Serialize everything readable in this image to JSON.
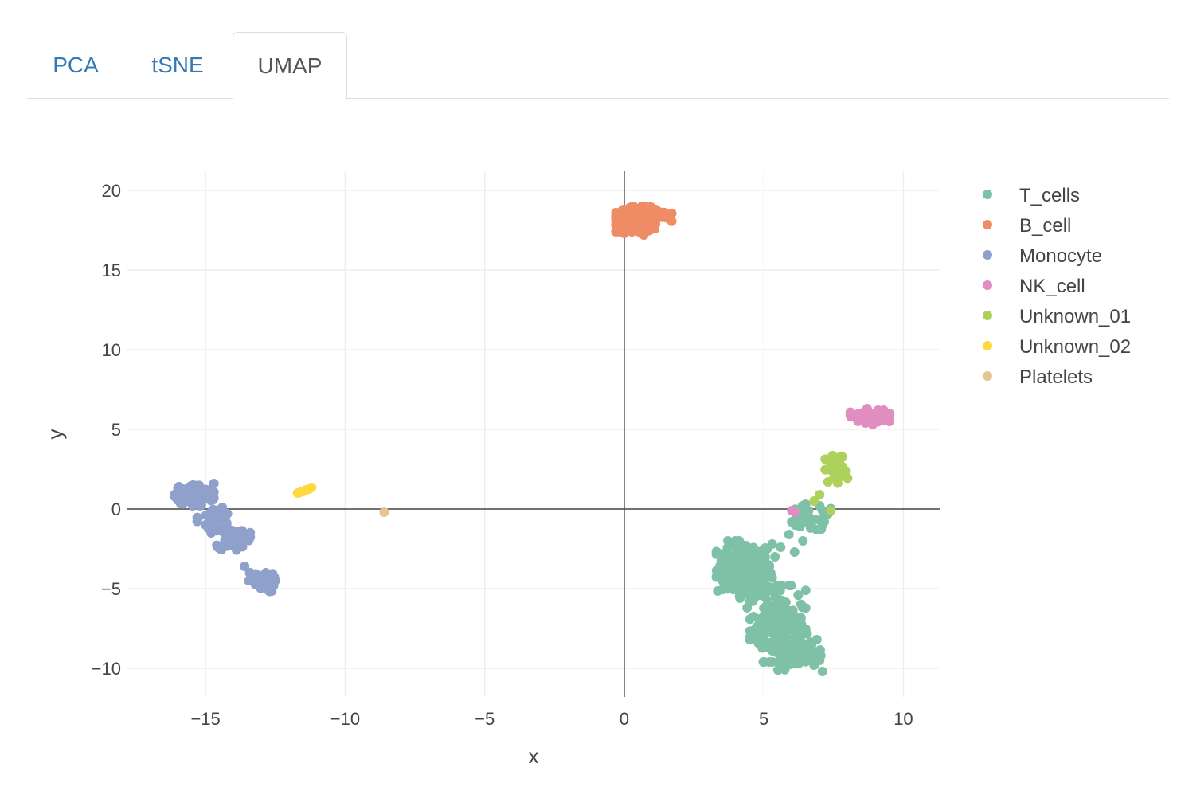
{
  "tabs": [
    {
      "label": "PCA",
      "active": false
    },
    {
      "label": "tSNE",
      "active": false
    },
    {
      "label": "UMAP",
      "active": true
    }
  ],
  "chart_data": {
    "type": "scatter",
    "xlabel": "x",
    "ylabel": "y",
    "xlim": [
      -17.8,
      11.3
    ],
    "ylim": [
      -11.8,
      21.2
    ],
    "xticks": [
      -15,
      -10,
      -5,
      0,
      5,
      10
    ],
    "yticks": [
      -10,
      -5,
      0,
      5,
      10,
      15,
      20
    ],
    "xtick_labels": [
      "−15",
      "−10",
      "−5",
      "0",
      "5",
      "10"
    ],
    "ytick_labels": [
      "−10",
      "−5",
      "0",
      "5",
      "10",
      "15",
      "20"
    ],
    "grid": true,
    "zero_lines": true,
    "legend_position": "right",
    "series": [
      {
        "name": "T_cells",
        "color": "#7fc1a7",
        "clusters": [
          {
            "center": [
              4.3,
              -3.8
            ],
            "spread": [
              0.5,
              0.9
            ],
            "n": 140
          },
          {
            "center": [
              5.5,
              -7.2
            ],
            "spread": [
              0.5,
              1.2
            ],
            "n": 170
          },
          {
            "center": [
              6.3,
              -9.0
            ],
            "spread": [
              0.4,
              0.6
            ],
            "n": 50
          },
          {
            "center": [
              6.6,
              -0.6
            ],
            "spread": [
              0.5,
              0.4
            ],
            "n": 30
          }
        ],
        "points": [
          [
            5.0,
            -4.2
          ],
          [
            5.2,
            -3.6
          ],
          [
            5.4,
            -3.0
          ],
          [
            5.6,
            -2.4
          ],
          [
            5.9,
            -1.6
          ],
          [
            6.0,
            -0.8
          ],
          [
            6.2,
            -0.2
          ],
          [
            6.5,
            0.3
          ],
          [
            6.9,
            -1.3
          ],
          [
            6.4,
            -2.0
          ],
          [
            6.1,
            -2.7
          ],
          [
            5.3,
            -2.2
          ],
          [
            5.0,
            -5.0
          ],
          [
            4.6,
            -5.6
          ],
          [
            4.4,
            -6.2
          ],
          [
            4.7,
            -4.5
          ],
          [
            6.8,
            -9.8
          ],
          [
            6.5,
            -8.7
          ],
          [
            6.9,
            -8.2
          ],
          [
            7.3,
            -0.3
          ],
          [
            7.1,
            -1.0
          ],
          [
            7.0,
            0.2
          ],
          [
            6.7,
            -0.9
          ],
          [
            6.3,
            -1.1
          ],
          [
            3.6,
            -3.2
          ],
          [
            3.8,
            -2.9
          ],
          [
            4.0,
            -4.9
          ],
          [
            7.0,
            -9.5
          ]
        ]
      },
      {
        "name": "B_cell",
        "color": "#ef8c65",
        "clusters": [
          {
            "center": [
              0.5,
              18.2
            ],
            "spread": [
              0.4,
              0.4
            ],
            "n": 140
          },
          {
            "center": [
              1.3,
              18.4
            ],
            "spread": [
              0.2,
              0.2
            ],
            "n": 20
          }
        ],
        "points": [
          [
            -0.3,
            18.4
          ],
          [
            1.5,
            18.5
          ],
          [
            0.0,
            17.3
          ],
          [
            0.7,
            17.2
          ],
          [
            0.3,
            19.0
          ]
        ]
      },
      {
        "name": "Monocyte",
        "color": "#8fa0ca",
        "clusters": [
          {
            "center": [
              -15.4,
              0.9
            ],
            "spread": [
              0.35,
              0.35
            ],
            "n": 120
          },
          {
            "center": [
              -14.7,
              -0.6
            ],
            "spread": [
              0.3,
              0.3
            ],
            "n": 25
          },
          {
            "center": [
              -14.0,
              -1.8
            ],
            "spread": [
              0.3,
              0.4
            ],
            "n": 50
          },
          {
            "center": [
              -13.0,
              -4.6
            ],
            "spread": [
              0.25,
              0.3
            ],
            "n": 50
          }
        ],
        "points": [
          [
            -15.0,
            -1.0
          ],
          [
            -14.8,
            -1.5
          ],
          [
            -14.3,
            -2.3
          ],
          [
            -13.6,
            -3.6
          ],
          [
            -13.4,
            -4.0
          ],
          [
            -14.4,
            0.1
          ],
          [
            -15.9,
            0.8
          ],
          [
            -14.9,
            -1.2
          ]
        ]
      },
      {
        "name": "NK_cell",
        "color": "#e08dc2",
        "clusters": [
          {
            "center": [
              8.8,
              5.8
            ],
            "spread": [
              0.35,
              0.2
            ],
            "n": 70
          }
        ],
        "points": [
          [
            8.3,
            5.9
          ],
          [
            9.5,
            5.5
          ],
          [
            8.7,
            6.3
          ],
          [
            8.9,
            5.3
          ],
          [
            6.1,
            -0.2
          ],
          [
            6.0,
            -0.1
          ]
        ]
      },
      {
        "name": "Unknown_01",
        "color": "#add15a",
        "clusters": [
          {
            "center": [
              7.6,
              2.4
            ],
            "spread": [
              0.2,
              0.5
            ],
            "n": 25
          }
        ],
        "points": [
          [
            7.8,
            3.3
          ],
          [
            7.7,
            3.0
          ],
          [
            7.3,
            1.7
          ],
          [
            7.0,
            0.9
          ],
          [
            6.8,
            0.5
          ],
          [
            7.4,
            -0.1
          ],
          [
            7.9,
            2.3
          ],
          [
            7.5,
            2.8
          ]
        ]
      },
      {
        "name": "Unknown_02",
        "color": "#fed83f",
        "clusters": [],
        "points": [
          [
            -11.7,
            1.0
          ],
          [
            -11.6,
            1.05
          ],
          [
            -11.5,
            1.1
          ],
          [
            -11.4,
            1.2
          ],
          [
            -11.3,
            1.25
          ],
          [
            -11.2,
            1.35
          ]
        ]
      },
      {
        "name": "Platelets",
        "color": "#e5c494",
        "clusters": [],
        "points": [
          [
            -8.6,
            -0.2
          ]
        ]
      }
    ]
  }
}
